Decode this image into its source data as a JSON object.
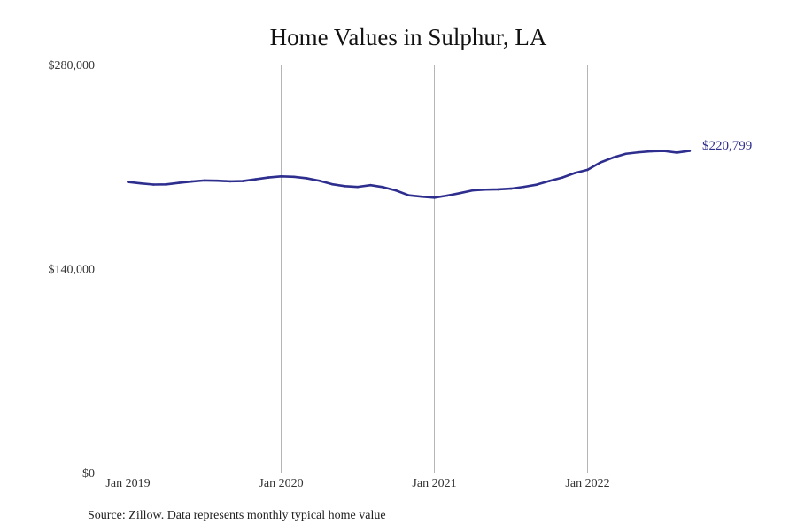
{
  "colors": {
    "series": "#2e2e8f",
    "gridline": "#b5b5b5",
    "text": "#333333"
  },
  "footer": {
    "source": "Source: Zillow. Data represents monthly typical home value"
  },
  "chart_data": {
    "type": "line",
    "title": "Home Values in Sulphur, LA",
    "xlabel": "",
    "ylabel": "",
    "ylim": [
      0,
      280000
    ],
    "y_ticks": [
      {
        "value": 0,
        "label": "$0"
      },
      {
        "value": 140000,
        "label": "$140,000"
      },
      {
        "value": 280000,
        "label": "$280,000"
      }
    ],
    "x_ticks": [
      {
        "value": "2019-01",
        "label": "Jan 2019"
      },
      {
        "value": "2020-01",
        "label": "Jan 2020"
      },
      {
        "value": "2021-01",
        "label": "Jan 2021"
      },
      {
        "value": "2022-01",
        "label": "Jan 2022"
      }
    ],
    "x_grid": true,
    "y_grid": false,
    "legend": "none",
    "end_label": "$220,799",
    "series": [
      {
        "x": [
          "2019-01",
          "2019-02",
          "2019-03",
          "2019-04",
          "2019-05",
          "2019-06",
          "2019-07",
          "2019-08",
          "2019-09",
          "2019-10",
          "2019-11",
          "2019-12",
          "2020-01",
          "2020-02",
          "2020-03",
          "2020-04",
          "2020-05",
          "2020-06",
          "2020-07",
          "2020-08",
          "2020-09",
          "2020-10",
          "2020-11",
          "2020-12",
          "2021-01",
          "2021-02",
          "2021-03",
          "2021-04",
          "2021-05",
          "2021-06",
          "2021-07",
          "2021-08",
          "2021-09",
          "2021-10",
          "2021-11",
          "2021-12",
          "2022-01",
          "2022-02",
          "2022-03",
          "2022-04",
          "2022-05",
          "2022-06",
          "2022-07",
          "2022-08",
          "2022-09"
        ],
        "values": [
          199500,
          198500,
          197700,
          197800,
          198900,
          199800,
          200500,
          200300,
          199900,
          200100,
          201300,
          202500,
          203300,
          203000,
          202000,
          200300,
          197900,
          196600,
          196100,
          197300,
          195900,
          193600,
          190300,
          189400,
          188700,
          190100,
          191800,
          193700,
          194200,
          194400,
          194900,
          196100,
          197600,
          200100,
          202400,
          205600,
          207800,
          212800,
          216200,
          218800,
          219800,
          220500,
          220700,
          219600,
          220799
        ]
      }
    ]
  }
}
